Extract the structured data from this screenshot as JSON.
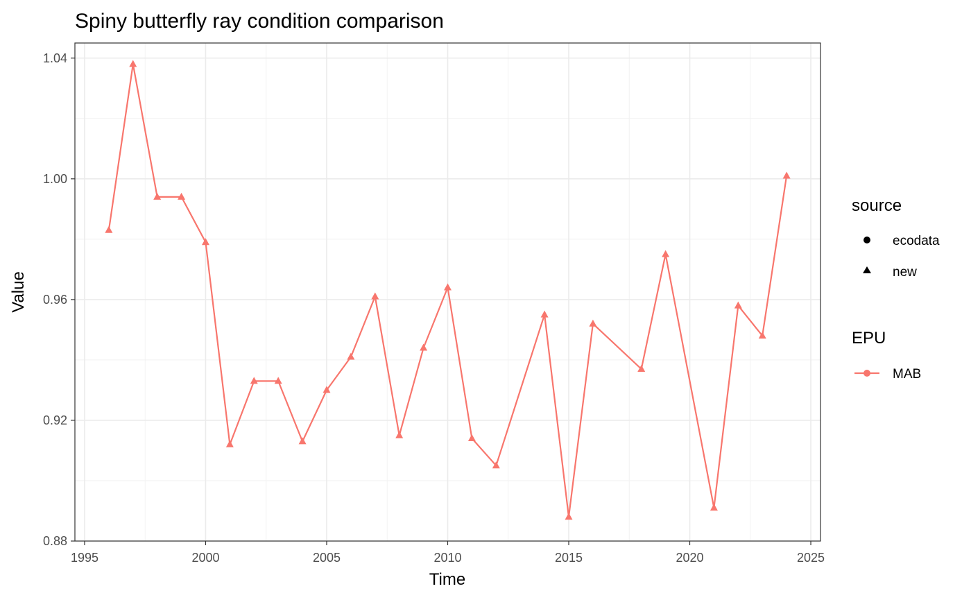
{
  "chart_data": {
    "type": "line",
    "title": "Spiny butterfly ray condition comparison",
    "xlabel": "Time",
    "ylabel": "Value",
    "xlim": [
      1994.6,
      2025.4
    ],
    "ylim": [
      0.88,
      1.045
    ],
    "x_ticks": [
      "1995",
      "2000",
      "2005",
      "2010",
      "2015",
      "2020",
      "2025"
    ],
    "y_ticks": [
      "0.88",
      "0.92",
      "0.96",
      "1.00",
      "1.04"
    ],
    "grid": true,
    "legend_position": "right",
    "legend": {
      "source_title": "source",
      "source_items": [
        {
          "label": "ecodata",
          "shape": "circle"
        },
        {
          "label": "new",
          "shape": "triangle"
        }
      ],
      "epu_title": "EPU",
      "epu_items": [
        {
          "label": "MAB",
          "color": "#F8766D"
        }
      ]
    },
    "series": [
      {
        "name": "MAB",
        "source": "new",
        "color": "#F8766D",
        "x": [
          1996,
          1997,
          1998,
          1999,
          2000,
          2001,
          2002,
          2003,
          2004,
          2005,
          2006,
          2007,
          2008,
          2009,
          2010,
          2011,
          2012,
          2014,
          2015,
          2016,
          2018,
          2019,
          2021,
          2022,
          2023,
          2024
        ],
        "y": [
          0.983,
          1.038,
          0.994,
          0.994,
          0.979,
          0.912,
          0.933,
          0.933,
          0.913,
          0.93,
          0.941,
          0.961,
          0.915,
          0.944,
          0.964,
          0.914,
          0.905,
          0.955,
          0.888,
          0.952,
          0.937,
          0.975,
          0.891,
          0.958,
          0.948,
          1.001
        ]
      }
    ]
  }
}
